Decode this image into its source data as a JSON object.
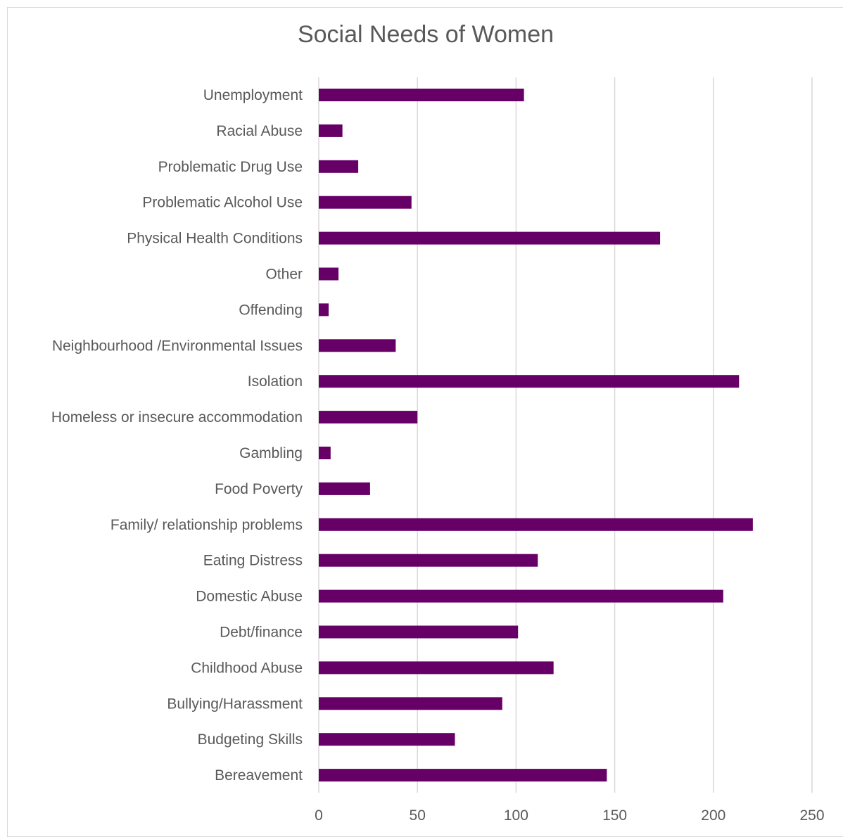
{
  "chart_data": {
    "type": "bar",
    "orientation": "horizontal",
    "title": "Social Needs of Women",
    "xlabel": "",
    "ylabel": "",
    "xlim": [
      0,
      250
    ],
    "ticks": [
      0,
      50,
      100,
      150,
      200,
      250
    ],
    "grid": true,
    "legend": "none",
    "bar_color": "#660066",
    "grid_color": "#d9d9d9",
    "categories": [
      "Unemployment",
      "Racial Abuse",
      "Problematic Drug Use",
      "Problematic Alcohol Use",
      "Physical Health Conditions",
      "Other",
      "Offending",
      "Neighbourhood /Environmental Issues",
      "Isolation",
      "Homeless or insecure accommodation",
      "Gambling",
      "Food Poverty",
      "Family/ relationship problems",
      "Eating Distress",
      "Domestic Abuse",
      "Debt/finance",
      "Childhood Abuse",
      "Bullying/Harassment",
      "Budgeting Skills",
      "Bereavement"
    ],
    "values": [
      104,
      12,
      20,
      47,
      173,
      10,
      5,
      39,
      213,
      50,
      6,
      26,
      220,
      111,
      205,
      101,
      119,
      93,
      69,
      146
    ]
  }
}
